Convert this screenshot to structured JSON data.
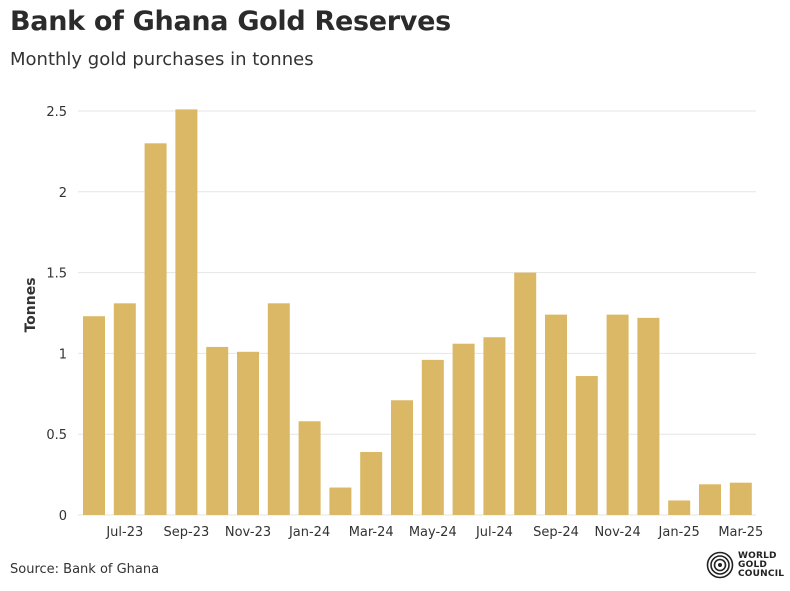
{
  "header": {
    "title": "Bank of Ghana Gold Reserves",
    "subtitle": "Monthly gold purchases in tonnes"
  },
  "footer": {
    "source": "Source: Bank of Ghana",
    "logo_lines": [
      "WORLD",
      "GOLD",
      "COUNCIL"
    ]
  },
  "colors": {
    "bar": "#dbb865",
    "grid": "#e6e6e6",
    "axis_text": "#333333"
  },
  "chart_data": {
    "type": "bar",
    "title": "Bank of Ghana Gold Reserves",
    "subtitle": "Monthly gold purchases in tonnes",
    "xlabel": "",
    "ylabel": "Tonnes",
    "ylim": [
      0,
      2.5
    ],
    "yticks": [
      0,
      0.5,
      1,
      1.5,
      2,
      2.5
    ],
    "ytick_labels": [
      "0",
      "0.5",
      "1",
      "1.5",
      "2",
      "2.5"
    ],
    "grid": true,
    "categories": [
      "Jun-23",
      "Jul-23",
      "Aug-23",
      "Sep-23",
      "Oct-23",
      "Nov-23",
      "Dec-23",
      "Jan-24",
      "Feb-24",
      "Mar-24",
      "Apr-24",
      "May-24",
      "Jun-24",
      "Jul-24",
      "Aug-24",
      "Sep-24",
      "Oct-24",
      "Nov-24",
      "Dec-24",
      "Jan-25",
      "Feb-25",
      "Mar-25"
    ],
    "values": [
      1.23,
      1.31,
      2.3,
      2.51,
      1.04,
      1.01,
      1.31,
      0.58,
      0.17,
      0.39,
      0.71,
      0.96,
      1.06,
      1.1,
      1.5,
      1.24,
      0.86,
      1.24,
      1.22,
      0.09,
      0.19,
      0.2
    ],
    "xtick_labels": [
      {
        "index": 1,
        "label": "Jul-23"
      },
      {
        "index": 3,
        "label": "Sep-23"
      },
      {
        "index": 5,
        "label": "Nov-23"
      },
      {
        "index": 7,
        "label": "Jan-24"
      },
      {
        "index": 9,
        "label": "Mar-24"
      },
      {
        "index": 11,
        "label": "May-24"
      },
      {
        "index": 13,
        "label": "Jul-24"
      },
      {
        "index": 15,
        "label": "Sep-24"
      },
      {
        "index": 17,
        "label": "Nov-24"
      },
      {
        "index": 19,
        "label": "Jan-25"
      },
      {
        "index": 21,
        "label": "Mar-25"
      }
    ]
  }
}
